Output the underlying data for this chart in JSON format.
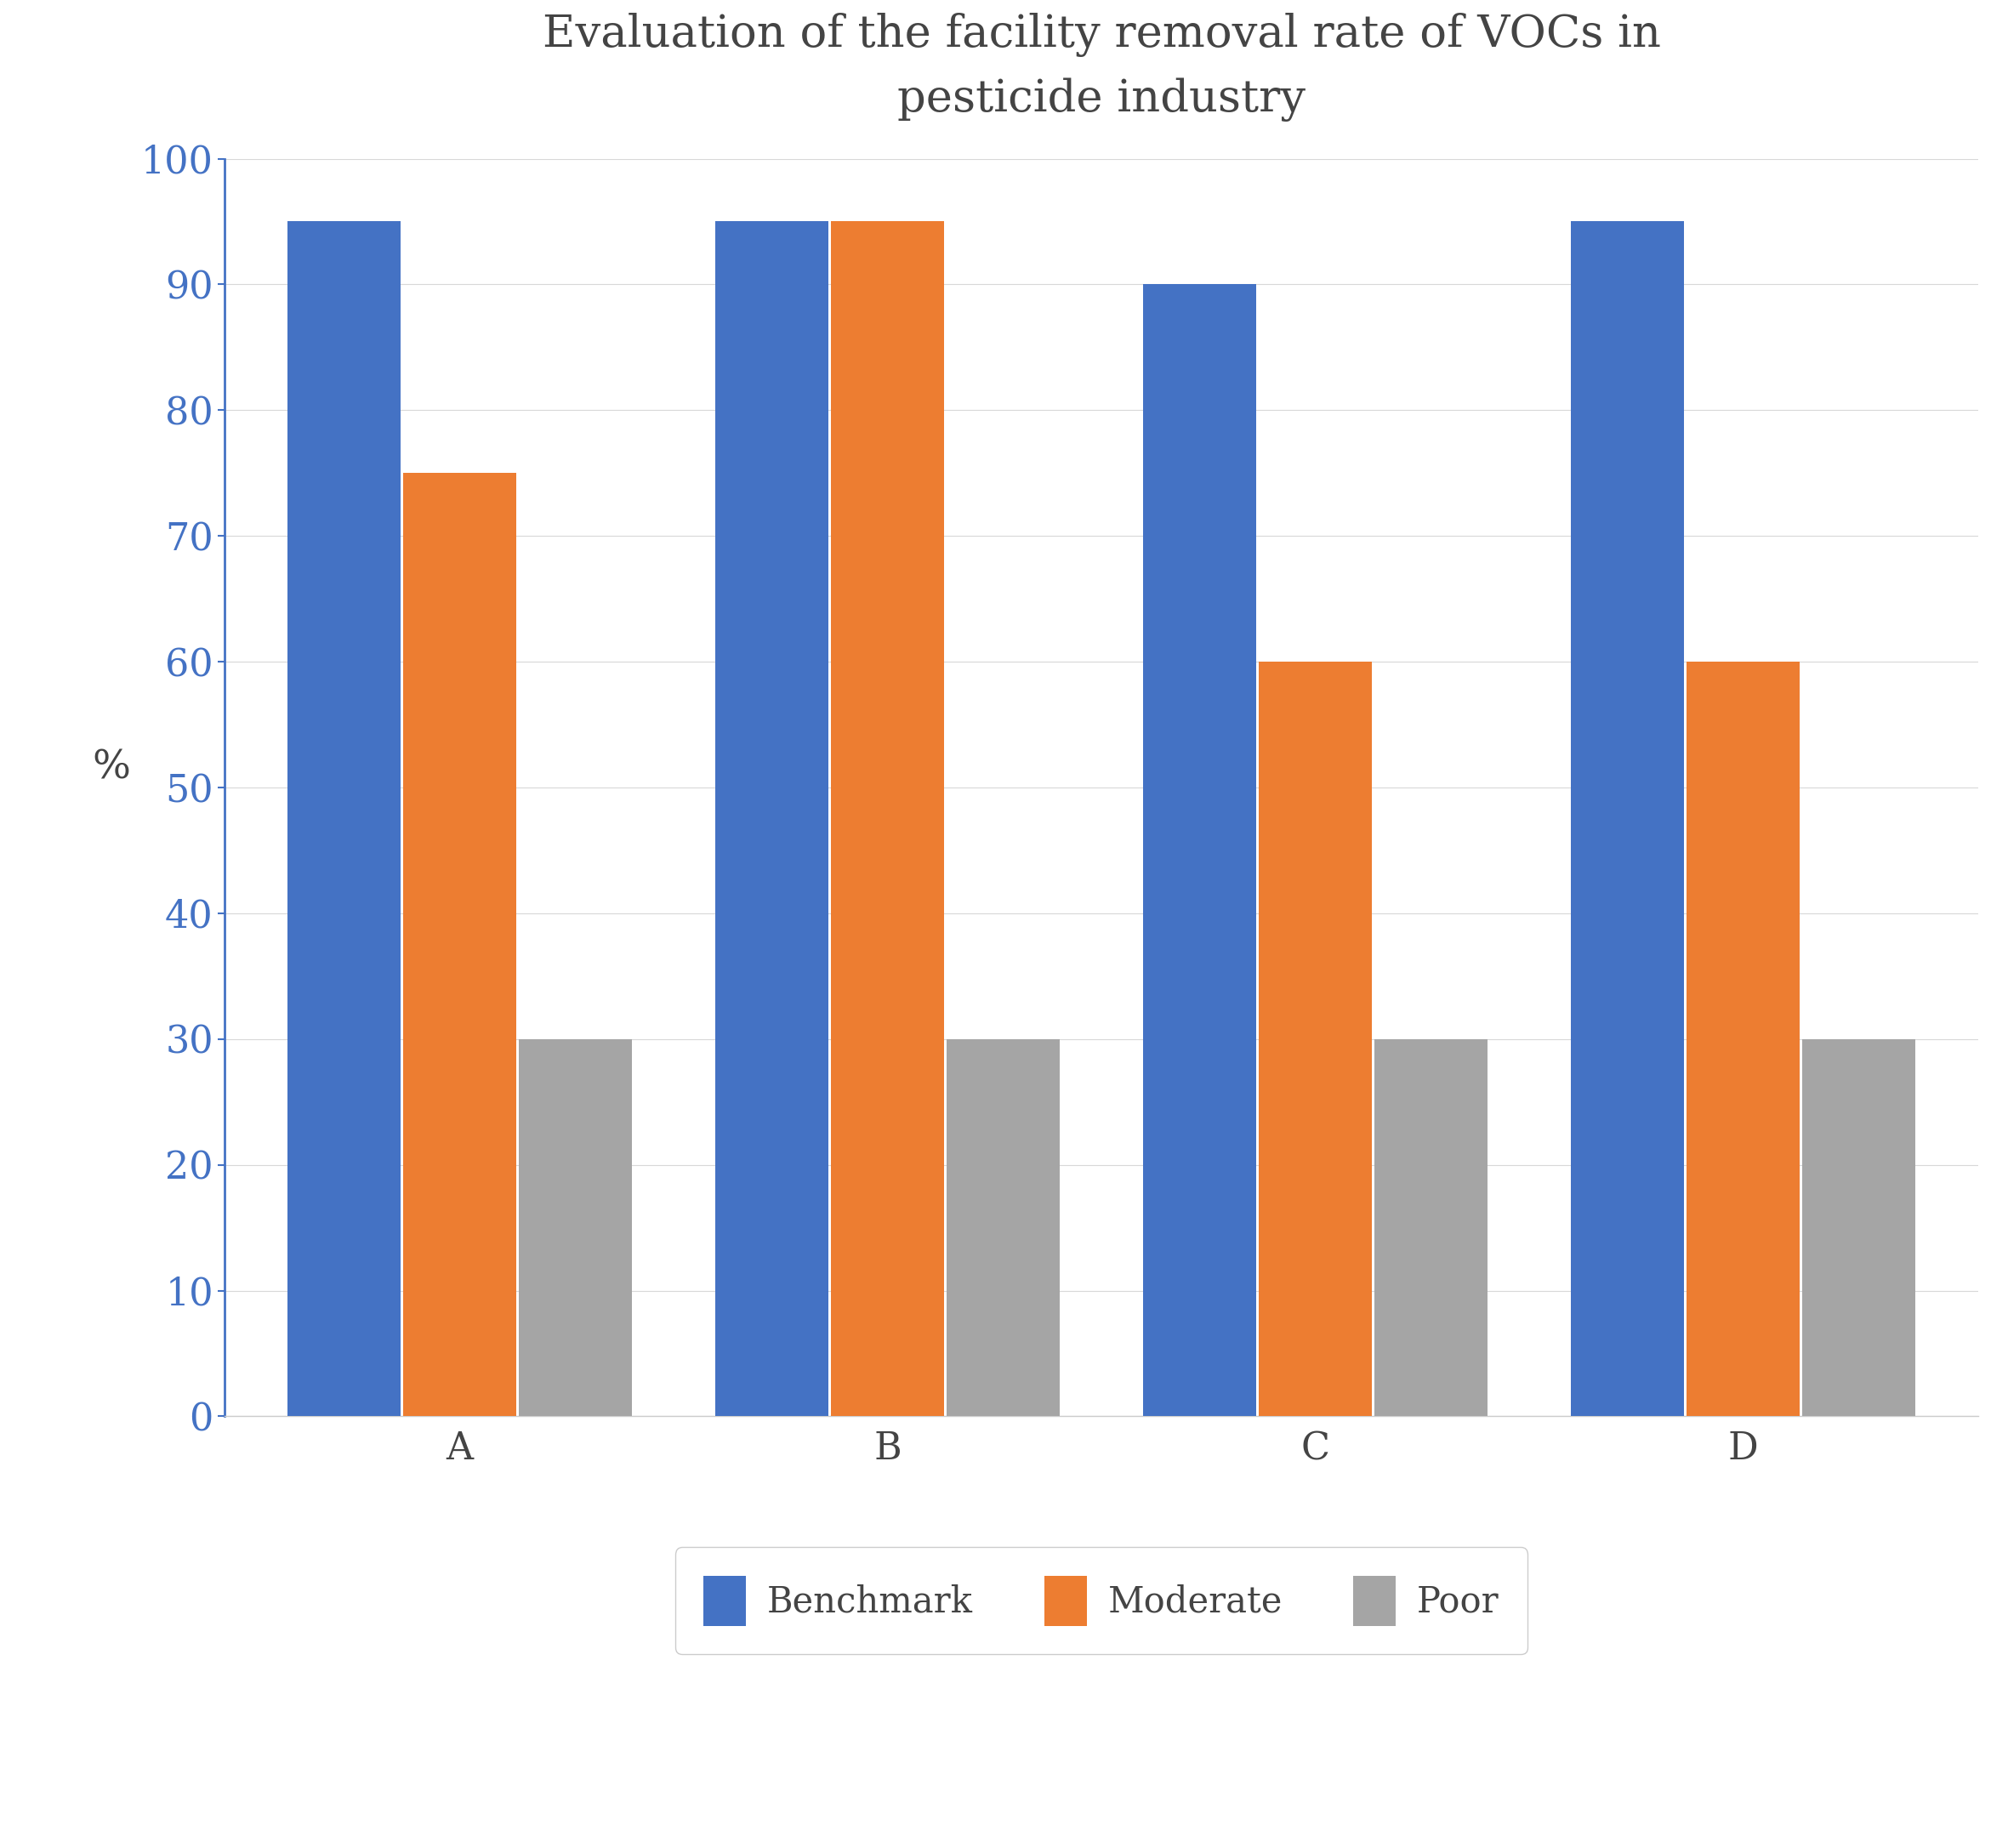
{
  "title": "Evaluation of the facility removal rate of VOCs in\npesticide industry",
  "categories": [
    "A",
    "B",
    "C",
    "D"
  ],
  "series": [
    {
      "label": "Benchmark",
      "values": [
        95,
        95,
        90,
        95
      ],
      "color": "#4472C4"
    },
    {
      "label": "Moderate",
      "values": [
        75,
        95,
        60,
        60
      ],
      "color": "#ED7D31"
    },
    {
      "label": "Poor",
      "values": [
        30,
        30,
        30,
        30
      ],
      "color": "#A5A5A5"
    }
  ],
  "ylabel": "%",
  "ylim": [
    0,
    100
  ],
  "yticks": [
    0,
    10,
    20,
    30,
    40,
    50,
    60,
    70,
    80,
    90,
    100
  ],
  "bar_width": 0.27,
  "title_fontsize": 38,
  "axis_label_fontsize": 34,
  "tick_fontsize": 32,
  "legend_fontsize": 30,
  "background_color": "#FFFFFF"
}
